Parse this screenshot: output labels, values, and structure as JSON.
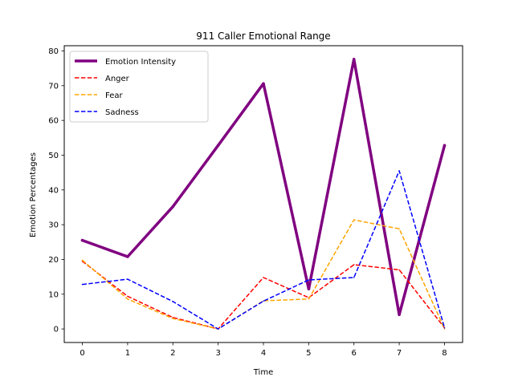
{
  "chart_data": {
    "type": "line",
    "title": "911 Caller Emotional Range",
    "xlabel": "Time",
    "ylabel": "Emotion Percentages",
    "x": [
      0,
      1,
      2,
      3,
      4,
      5,
      6,
      7,
      8
    ],
    "xlim": [
      -0.4,
      8.4
    ],
    "ylim": [
      -3.9,
      81.5
    ],
    "xticks": [
      0,
      1,
      2,
      3,
      4,
      5,
      6,
      7,
      8
    ],
    "yticks": [
      0,
      10,
      20,
      30,
      40,
      50,
      60,
      70,
      80
    ],
    "grid": false,
    "legend_position": "top-left",
    "series": [
      {
        "name": "Emotion Intensity",
        "values": [
          25.5,
          20.8,
          35.2,
          52.8,
          70.6,
          11.5,
          77.6,
          4.1,
          52.8
        ],
        "color": "#800080",
        "style": "solid",
        "weight": "thick"
      },
      {
        "name": "Anger",
        "values": [
          19.5,
          9.4,
          3.3,
          0.0,
          14.8,
          9.0,
          18.5,
          17.0,
          0.3
        ],
        "color": "#ff0000",
        "style": "dashed",
        "weight": "normal"
      },
      {
        "name": "Fear",
        "values": [
          19.8,
          8.6,
          3.0,
          0.0,
          8.1,
          8.6,
          31.4,
          28.8,
          0.0
        ],
        "color": "#ffa500",
        "style": "dashed",
        "weight": "normal"
      },
      {
        "name": "Sadness",
        "values": [
          12.8,
          14.3,
          7.9,
          0.0,
          8.0,
          14.1,
          14.8,
          45.5,
          0.3
        ],
        "color": "#0000ff",
        "style": "dashed",
        "weight": "normal"
      }
    ]
  }
}
